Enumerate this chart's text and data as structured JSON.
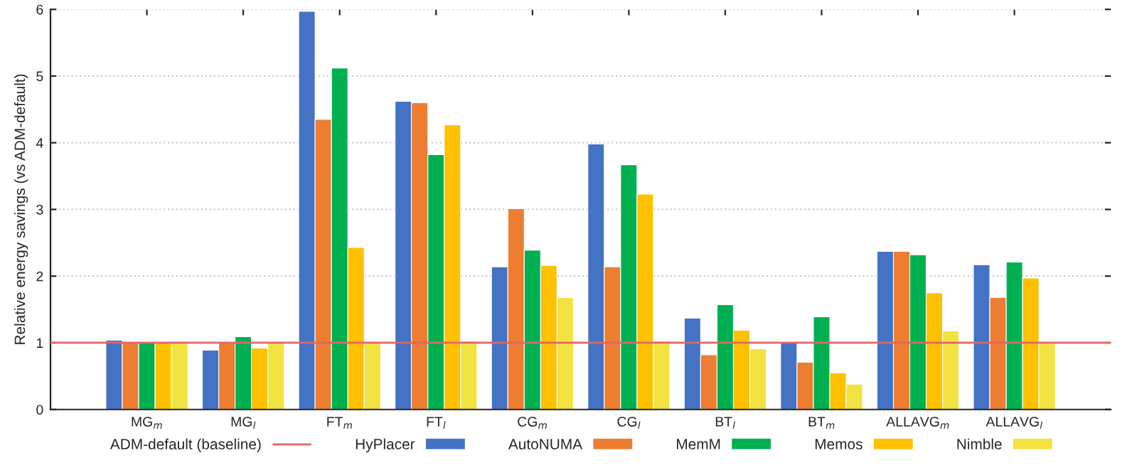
{
  "chart_data": {
    "type": "bar",
    "ylabel": "Relative energy savings (vs ADM-default)",
    "categories": [
      "MG$_{m}$",
      "MG$_{l}$",
      "FT$_{m}$",
      "FT$_{l}$",
      "CG$_{m}$",
      "CG$_{l}$",
      "BT$_{l}$",
      "BT$_{m}$",
      "ALLAVG$_{m}$",
      "ALLAVG$_{l}$"
    ],
    "series": [
      {
        "name": "HyPlacer",
        "color": "#4472c4",
        "values": [
          1.04,
          0.89,
          5.97,
          4.62,
          2.14,
          3.98,
          1.37,
          1.0,
          2.37,
          2.17
        ]
      },
      {
        "name": "AutoNUMA",
        "color": "#ed7d31",
        "values": [
          1.0,
          1.0,
          4.35,
          4.6,
          3.01,
          2.14,
          0.82,
          0.71,
          2.37,
          1.68
        ]
      },
      {
        "name": "MemM",
        "color": "#00b050",
        "values": [
          1.0,
          1.09,
          5.12,
          3.82,
          2.39,
          3.67,
          1.57,
          1.39,
          2.32,
          2.21
        ]
      },
      {
        "name": "Memos",
        "color": "#ffc000",
        "values": [
          1.0,
          0.92,
          2.43,
          4.27,
          2.16,
          3.23,
          1.19,
          0.55,
          1.75,
          1.97
        ]
      },
      {
        "name": "Nimble",
        "color": "#f2e340",
        "values": [
          1.0,
          1.0,
          1.0,
          1.03,
          1.68,
          1.03,
          0.91,
          0.38,
          1.18,
          1.0
        ]
      }
    ],
    "ylim": [
      0,
      6
    ],
    "yticks": [
      0,
      1,
      2,
      3,
      4,
      5,
      6
    ],
    "grid": "y",
    "legend": "bottom",
    "ref_lines": [
      {
        "axis": "y",
        "value": 1,
        "label": "ADM-default (baseline)",
        "color": "#e06666",
        "line_style": "solid"
      }
    ]
  }
}
